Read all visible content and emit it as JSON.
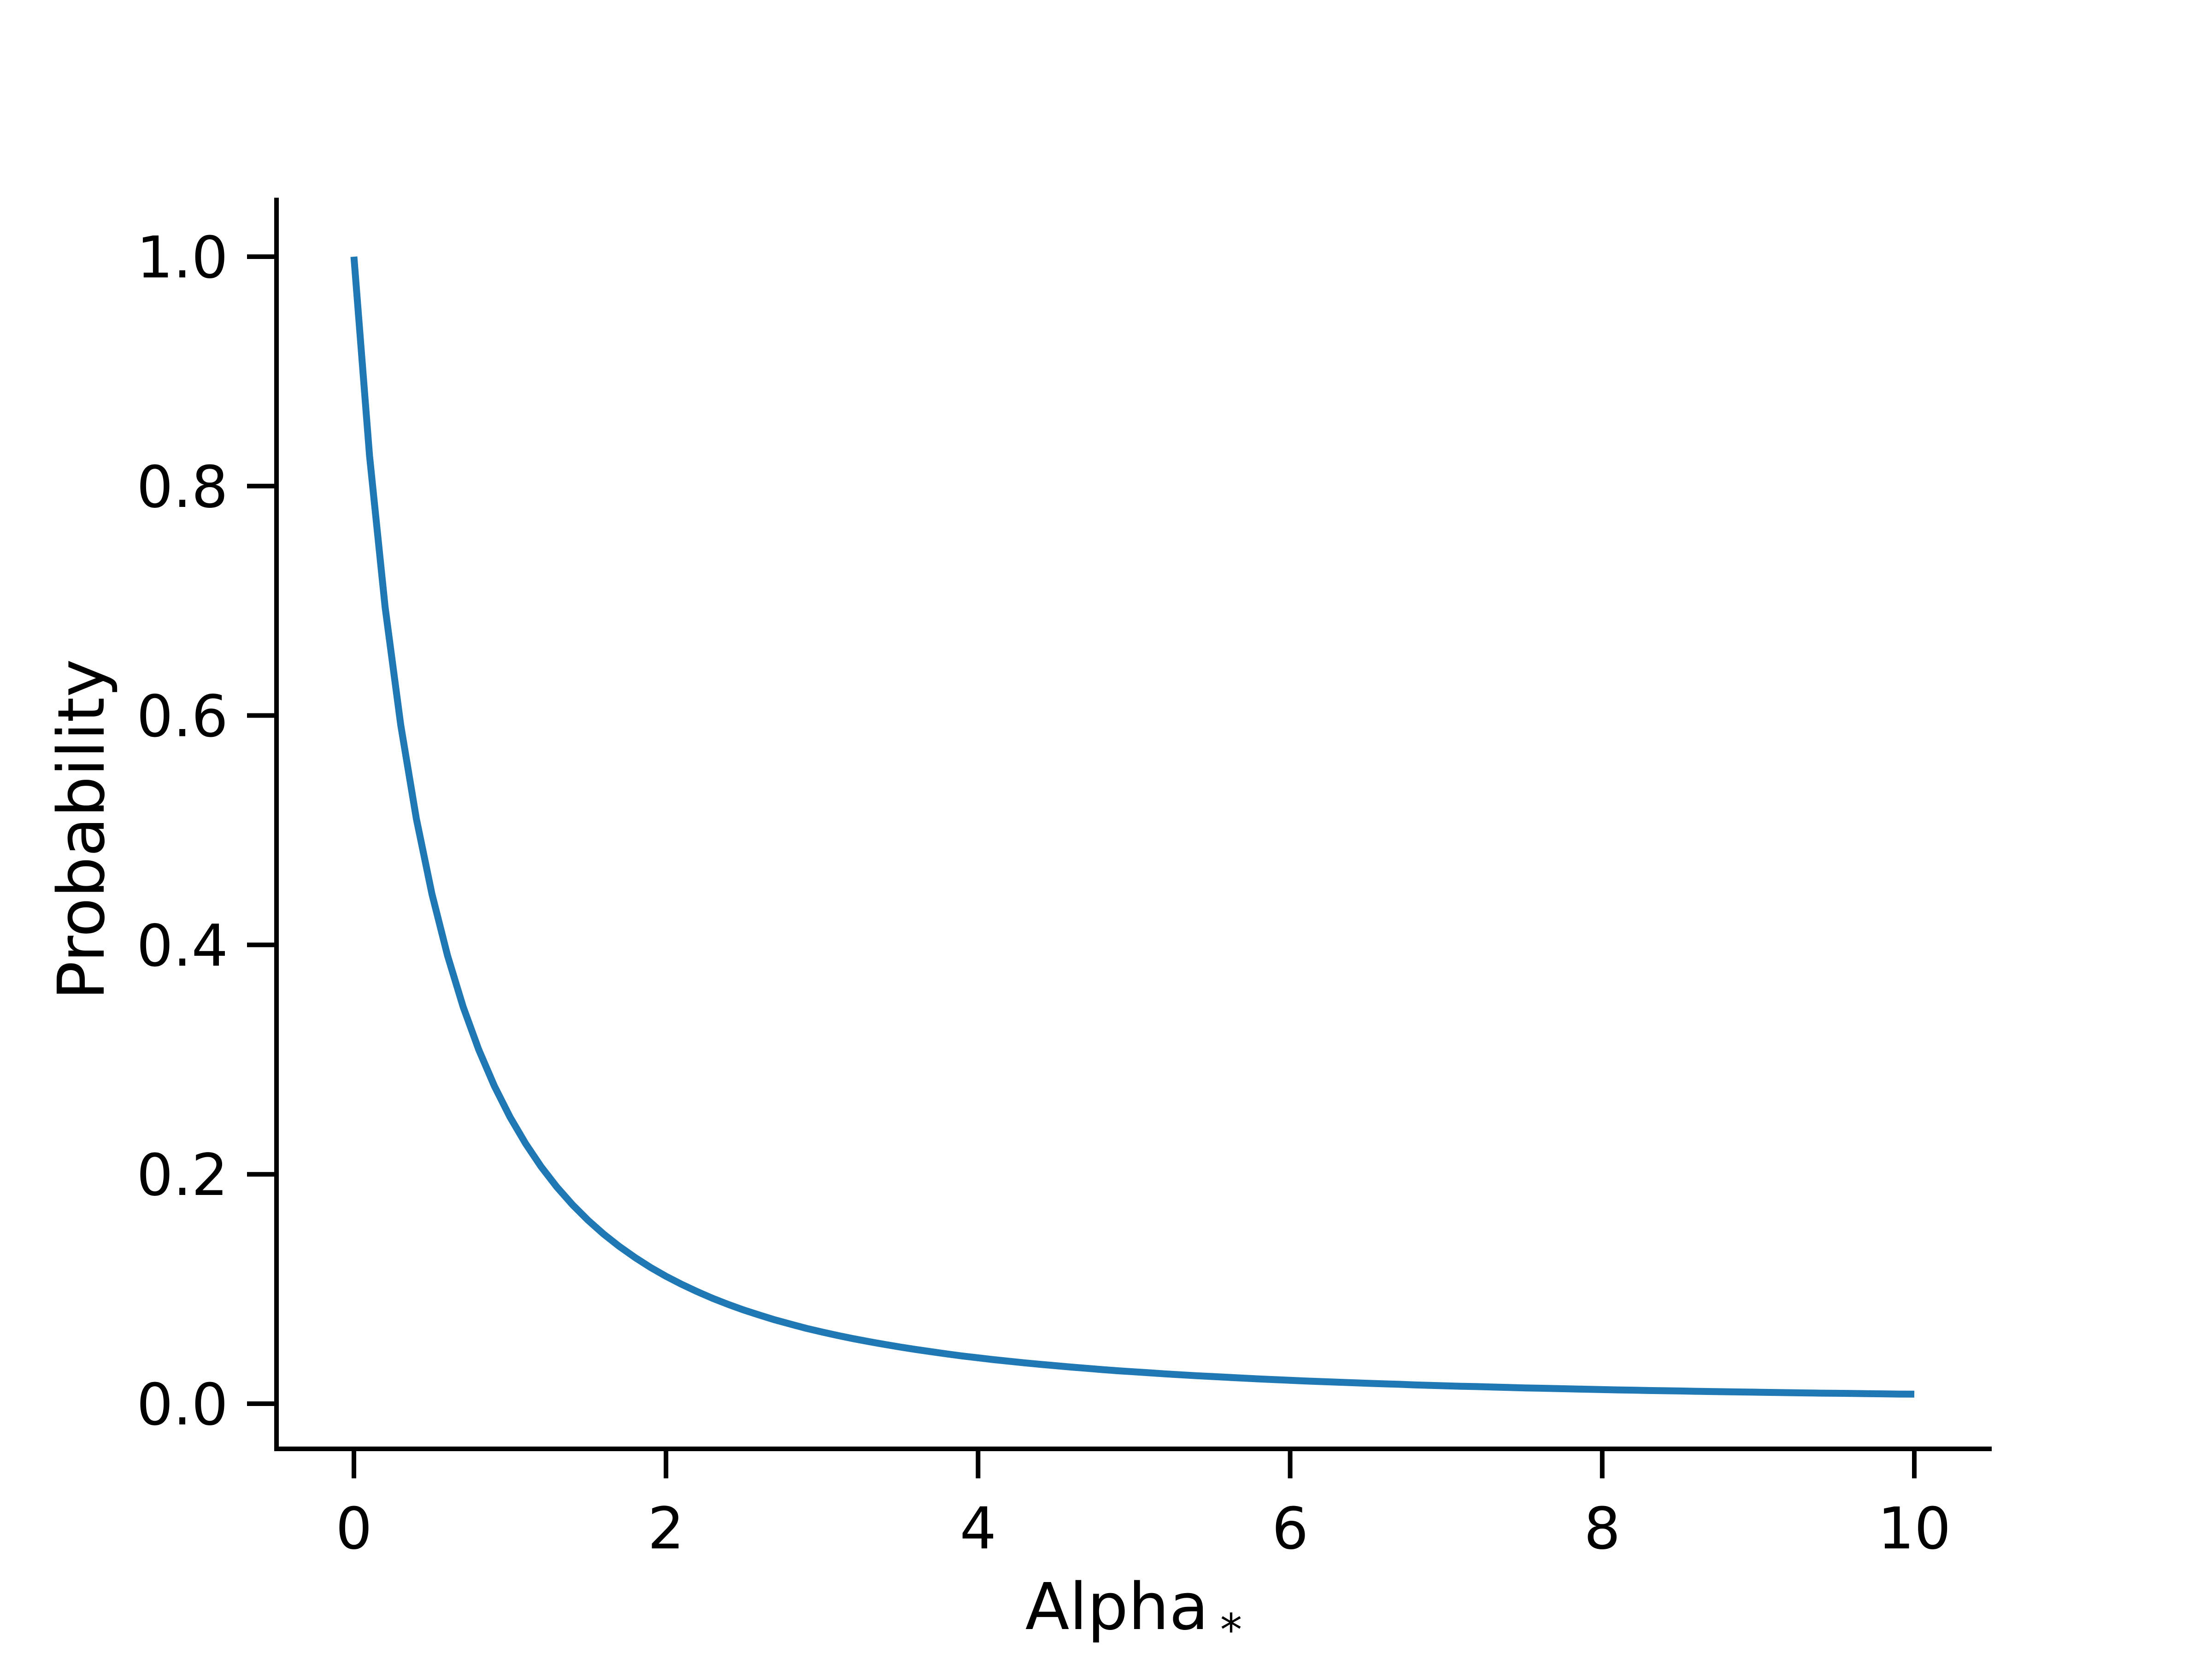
{
  "chart_data": {
    "type": "line",
    "title": "",
    "xlabel": "Alpha",
    "xlabel_subscript": "*",
    "ylabel": "Probability",
    "xlim": [
      -0.5,
      10.5
    ],
    "ylim": [
      -0.04,
      1.05
    ],
    "xticks": [
      0,
      2,
      4,
      6,
      8,
      10
    ],
    "xtick_labels": [
      "0",
      "2",
      "4",
      "6",
      "8",
      "10"
    ],
    "yticks": [
      0.0,
      0.2,
      0.4,
      0.6,
      0.8,
      1.0
    ],
    "ytick_labels": [
      "0.0",
      "0.2",
      "0.4",
      "0.6",
      "0.8",
      "1.0"
    ],
    "grid": false,
    "line_color": "#1f77b4",
    "series": [
      {
        "x": [
          0,
          0.1,
          0.2,
          0.3,
          0.4,
          0.5,
          0.6,
          0.7,
          0.8,
          0.9,
          1,
          1.1,
          1.2,
          1.3,
          1.4,
          1.5,
          1.6,
          1.7,
          1.8,
          1.9,
          2,
          2.1,
          2.2,
          2.3,
          2.4,
          2.5,
          2.6,
          2.7,
          2.8,
          2.9,
          3,
          3.1,
          3.2,
          3.3,
          3.4,
          3.5,
          3.6,
          3.7,
          3.8,
          3.9,
          4,
          4.1,
          4.2,
          4.3,
          4.4,
          4.5,
          4.6,
          4.7,
          4.8,
          4.9,
          5,
          5.1,
          5.2,
          5.3,
          5.4,
          5.5,
          5.6,
          5.7,
          5.8,
          5.9,
          6,
          6.1,
          6.2,
          6.3,
          6.4,
          6.5,
          6.6,
          6.7,
          6.8,
          6.9,
          7,
          7.1,
          7.2,
          7.3,
          7.4,
          7.5,
          7.6,
          7.7,
          7.8,
          7.9,
          8,
          8.1,
          8.2,
          8.3,
          8.4,
          8.5,
          8.6,
          8.7,
          8.8,
          8.9,
          9,
          9.1,
          9.2,
          9.3,
          9.4,
          9.5,
          9.6,
          9.7,
          9.8,
          9.9,
          10
        ],
        "y": [
          1.0,
          0.8264,
          0.6944,
          0.5917,
          0.5102,
          0.4444,
          0.3906,
          0.346,
          0.3086,
          0.277,
          0.25,
          0.2268,
          0.2066,
          0.189,
          0.1736,
          0.16,
          0.1479,
          0.1372,
          0.1276,
          0.1189,
          0.1111,
          0.1041,
          0.0977,
          0.0918,
          0.0865,
          0.0816,
          0.0772,
          0.073,
          0.0693,
          0.0657,
          0.0625,
          0.0595,
          0.0567,
          0.0541,
          0.0517,
          0.0494,
          0.0473,
          0.0453,
          0.0434,
          0.0416,
          0.04,
          0.0384,
          0.037,
          0.0356,
          0.0343,
          0.0331,
          0.0319,
          0.0308,
          0.0297,
          0.0287,
          0.0278,
          0.0269,
          0.026,
          0.0252,
          0.0244,
          0.0237,
          0.023,
          0.0223,
          0.0216,
          0.021,
          0.0204,
          0.0198,
          0.0193,
          0.0188,
          0.0183,
          0.0178,
          0.0173,
          0.0169,
          0.0164,
          0.016,
          0.0156,
          0.0152,
          0.0149,
          0.0145,
          0.0142,
          0.0138,
          0.0135,
          0.0132,
          0.0129,
          0.0126,
          0.0123,
          0.012,
          0.0118,
          0.0115,
          0.0113,
          0.0111,
          0.0108,
          0.0106,
          0.0104,
          0.0102,
          0.01,
          0.0098,
          0.0096,
          0.0094,
          0.0092,
          0.0091,
          0.0089,
          0.0087,
          0.0086,
          0.0084,
          0.0083
        ]
      }
    ]
  }
}
